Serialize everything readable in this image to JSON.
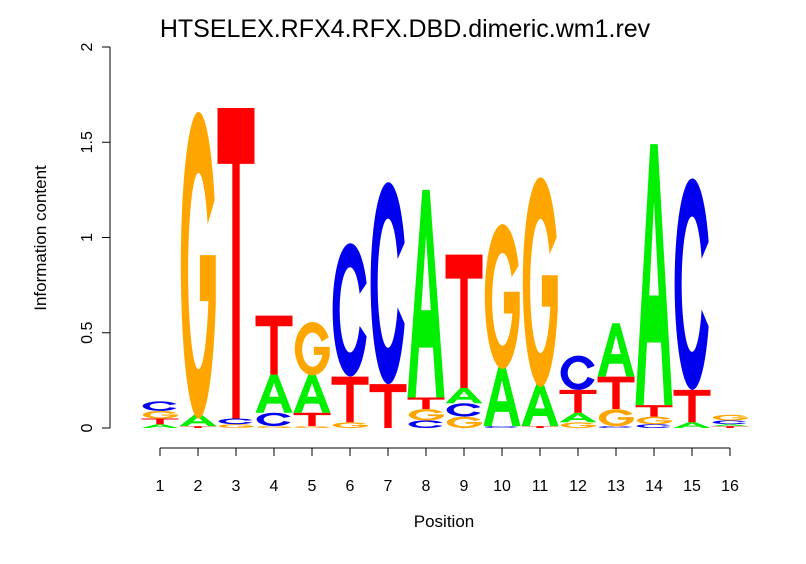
{
  "chart_data": {
    "type": "sequence-logo",
    "title": "HTSELEX.RFX4.RFX.DBD.dimeric.wm1.rev",
    "xlabel": "Position",
    "ylabel": "Information content",
    "ylim": [
      0,
      2
    ],
    "yticks": [
      "0",
      "0.5",
      "1",
      "1.5",
      "2"
    ],
    "categories": [
      "1",
      "2",
      "3",
      "4",
      "5",
      "6",
      "7",
      "8",
      "9",
      "10",
      "11",
      "12",
      "13",
      "14",
      "15",
      "16"
    ],
    "colors": {
      "A": "#00ee00",
      "C": "#0000ee",
      "G": "#ffa500",
      "T": "#ff0000"
    },
    "stacks": [
      [
        [
          "A",
          0.02
        ],
        [
          "T",
          0.03
        ],
        [
          "G",
          0.04
        ],
        [
          "C",
          0.05
        ]
      ],
      [
        [
          "T",
          0.01
        ],
        [
          "A",
          0.06
        ],
        [
          "G",
          1.61
        ]
      ],
      [
        [
          "G",
          0.02
        ],
        [
          "C",
          0.03
        ],
        [
          "T",
          1.63
        ]
      ],
      [
        [
          "G",
          0.01
        ],
        [
          "C",
          0.07
        ],
        [
          "A",
          0.2
        ],
        [
          "T",
          0.31
        ]
      ],
      [
        [
          "G",
          0.01
        ],
        [
          "T",
          0.07
        ],
        [
          "A",
          0.2
        ],
        [
          "G",
          0.28
        ]
      ],
      [
        [
          "G",
          0.03
        ],
        [
          "T",
          0.24
        ],
        [
          "C",
          0.7
        ]
      ],
      [
        [
          "T",
          0.23
        ],
        [
          "C",
          1.06
        ]
      ],
      [
        [
          "C",
          0.04
        ],
        [
          "G",
          0.06
        ],
        [
          "T",
          0.06
        ],
        [
          "A",
          1.09
        ]
      ],
      [
        [
          "G",
          0.06
        ],
        [
          "C",
          0.07
        ],
        [
          "A",
          0.08
        ],
        [
          "T",
          0.7
        ]
      ],
      [
        [
          "C",
          0.01
        ],
        [
          "A",
          0.31
        ],
        [
          "G",
          0.76
        ]
      ],
      [
        [
          "T",
          0.01
        ],
        [
          "A",
          0.22
        ],
        [
          "G",
          1.1
        ]
      ],
      [
        [
          "G",
          0.03
        ],
        [
          "A",
          0.05
        ],
        [
          "T",
          0.12
        ],
        [
          "C",
          0.18
        ]
      ],
      [
        [
          "C",
          0.01
        ],
        [
          "G",
          0.09
        ],
        [
          "T",
          0.17
        ],
        [
          "A",
          0.28
        ]
      ],
      [
        [
          "C",
          0.02
        ],
        [
          "G",
          0.04
        ],
        [
          "T",
          0.06
        ],
        [
          "A",
          1.37
        ]
      ],
      [
        [
          "A",
          0.03
        ],
        [
          "T",
          0.17
        ],
        [
          "C",
          1.11
        ]
      ],
      [
        [
          "T",
          0.01
        ],
        [
          "A",
          0.01
        ],
        [
          "C",
          0.02
        ],
        [
          "G",
          0.03
        ]
      ]
    ]
  }
}
